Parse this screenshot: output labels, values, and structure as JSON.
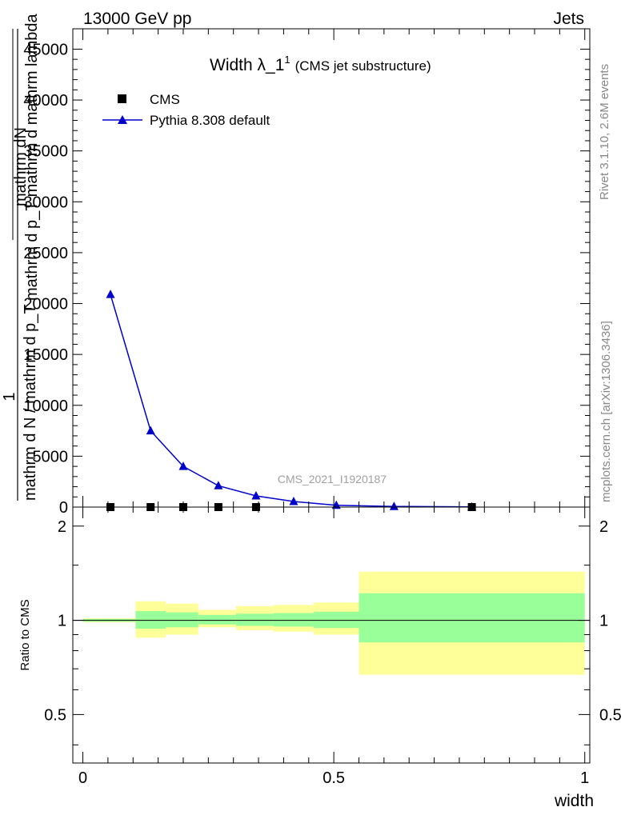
{
  "header": {
    "left": "13000 GeV pp",
    "right": "Jets"
  },
  "side_labels": {
    "rivet": "Rivet 3.1.10,  2.6M events",
    "mcplots": "mcplots.cern.ch [arXiv:1306.3436]"
  },
  "chart_data": [
    {
      "type": "line",
      "title": "Width λ_1",
      "title_superscript": "1",
      "subtitle": "(CMS jet substructure)",
      "watermark": "CMS_2021_I1920187",
      "ylabel_numerator": "1",
      "ylabel_line1": "mathrm dN",
      "ylabel_line2": "mathrm d p_T mathrm d mathrm lambda",
      "ylabel_denominator": "mathrm d N / mathrm d p_T",
      "ylim": [
        0,
        47000
      ],
      "yticks": [
        0,
        5000,
        10000,
        15000,
        20000,
        25000,
        30000,
        35000,
        40000,
        45000
      ],
      "ytick_labels": [
        "0",
        "5000",
        "10000",
        "15000",
        "20000",
        "25000",
        "30000",
        "35000",
        "40000",
        "45000"
      ],
      "xlim": [
        -0.02,
        1.01
      ],
      "legend_position": "top-left",
      "series": [
        {
          "name": "CMS",
          "marker": "square",
          "color": "#000000",
          "x": [
            0.055,
            0.135,
            0.2,
            0.27,
            0.345,
            0.775
          ],
          "y": [
            0,
            0,
            0,
            0,
            0,
            0
          ]
        },
        {
          "name": "Pythia 8.308 default",
          "marker": "triangle",
          "color": "#0000cc",
          "x": [
            0.055,
            0.135,
            0.2,
            0.27,
            0.345,
            0.42,
            0.505,
            0.62,
            0.775
          ],
          "y": [
            20900,
            7500,
            4000,
            2100,
            1100,
            550,
            180,
            60,
            15
          ]
        }
      ]
    },
    {
      "type": "area",
      "xlabel": "width",
      "ylabel": "Ratio to CMS",
      "ylim": [
        0.35,
        2.3
      ],
      "log_scale_y": true,
      "yticks": [
        0.5,
        1,
        2
      ],
      "ytick_labels": [
        "0.5",
        "1",
        "2"
      ],
      "xlim": [
        -0.02,
        1.01
      ],
      "xticks": [
        0,
        0.5,
        1
      ],
      "xtick_labels": [
        "0",
        "0.5",
        "1"
      ],
      "reference_line": 1,
      "bands": [
        {
          "x0": 0.0,
          "x1": 0.105,
          "inner": [
            0.99,
            1.01
          ],
          "outer": [
            0.985,
            1.015
          ]
        },
        {
          "x0": 0.105,
          "x1": 0.165,
          "inner": [
            0.94,
            1.07
          ],
          "outer": [
            0.88,
            1.15
          ]
        },
        {
          "x0": 0.165,
          "x1": 0.23,
          "inner": [
            0.95,
            1.06
          ],
          "outer": [
            0.9,
            1.13
          ]
        },
        {
          "x0": 0.23,
          "x1": 0.305,
          "inner": [
            0.97,
            1.04
          ],
          "outer": [
            0.95,
            1.08
          ]
        },
        {
          "x0": 0.305,
          "x1": 0.38,
          "inner": [
            0.96,
            1.05
          ],
          "outer": [
            0.93,
            1.11
          ]
        },
        {
          "x0": 0.38,
          "x1": 0.46,
          "inner": [
            0.955,
            1.055
          ],
          "outer": [
            0.92,
            1.12
          ]
        },
        {
          "x0": 0.46,
          "x1": 0.55,
          "inner": [
            0.945,
            1.065
          ],
          "outer": [
            0.9,
            1.14
          ]
        },
        {
          "x0": 0.55,
          "x1": 1.0,
          "inner": [
            0.85,
            1.22
          ],
          "outer": [
            0.67,
            1.43
          ]
        }
      ],
      "band_colors": {
        "inner": "#99ff99",
        "outer": "#ffff99"
      }
    }
  ]
}
